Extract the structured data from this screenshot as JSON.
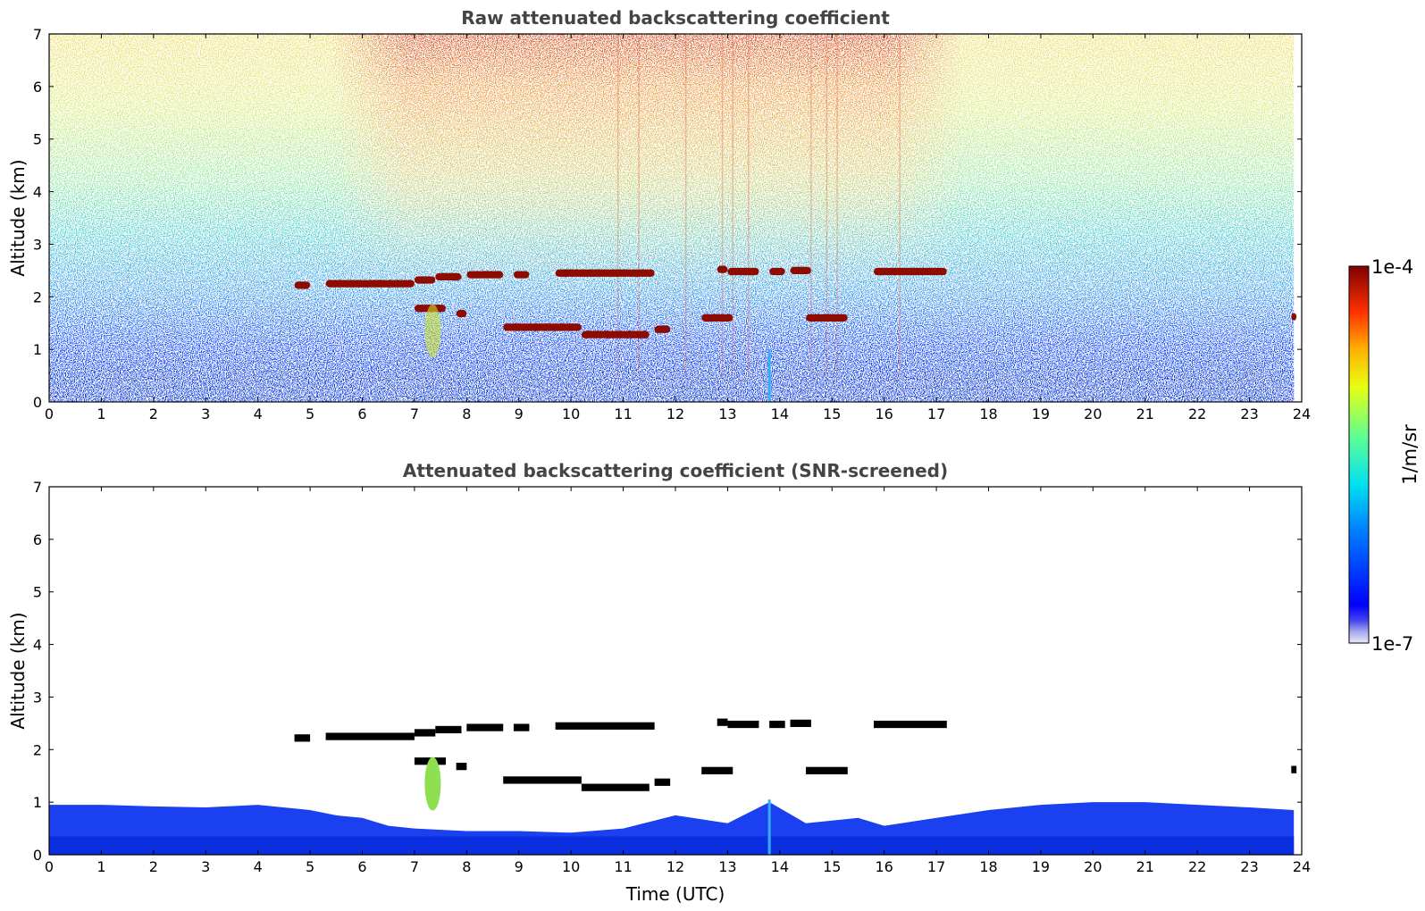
{
  "chart_data": [
    {
      "type": "heatmap",
      "title": "Raw attenuated backscattering coefficient",
      "xlabel": "",
      "ylabel": "Altitude (km)",
      "xlim": [
        0,
        24
      ],
      "ylim": [
        0,
        7
      ],
      "x_ticks": [
        0,
        1,
        2,
        3,
        4,
        5,
        6,
        7,
        8,
        9,
        10,
        11,
        12,
        13,
        14,
        15,
        16,
        17,
        18,
        19,
        20,
        21,
        22,
        23,
        24
      ],
      "y_ticks": [
        0,
        1,
        2,
        3,
        4,
        5,
        6,
        7
      ],
      "grid": false,
      "cloud_layers": [
        {
          "x": [
            4.7,
            5.0
          ],
          "y": 2.22
        },
        {
          "x": [
            5.3,
            7.0
          ],
          "y": 2.25
        },
        {
          "x": [
            7.0,
            7.4
          ],
          "y": 2.32
        },
        {
          "x": [
            7.4,
            7.9
          ],
          "y": 2.38
        },
        {
          "x": [
            8.0,
            8.7
          ],
          "y": 2.42
        },
        {
          "x": [
            8.9,
            9.2
          ],
          "y": 2.42
        },
        {
          "x": [
            9.7,
            11.6
          ],
          "y": 2.45
        },
        {
          "x": [
            12.8,
            13.0
          ],
          "y": 2.52
        },
        {
          "x": [
            13.0,
            13.6
          ],
          "y": 2.48
        },
        {
          "x": [
            13.8,
            14.1
          ],
          "y": 2.48
        },
        {
          "x": [
            14.2,
            14.6
          ],
          "y": 2.5
        },
        {
          "x": [
            15.8,
            17.2
          ],
          "y": 2.48
        },
        {
          "x": [
            7.0,
            7.6
          ],
          "y": 1.78
        },
        {
          "x": [
            7.8,
            8.0
          ],
          "y": 1.68
        },
        {
          "x": [
            8.7,
            10.2
          ],
          "y": 1.42
        },
        {
          "x": [
            10.2,
            11.5
          ],
          "y": 1.28
        },
        {
          "x": [
            11.6,
            11.9
          ],
          "y": 1.38
        },
        {
          "x": [
            12.5,
            13.1
          ],
          "y": 1.6
        },
        {
          "x": [
            14.5,
            15.3
          ],
          "y": 1.6
        },
        {
          "x": [
            23.8,
            23.9
          ],
          "y": 1.62
        }
      ]
    },
    {
      "type": "heatmap",
      "title": "Attenuated backscattering coefficient (SNR-screened)",
      "xlabel": "Time (UTC)",
      "ylabel": "Altitude (km)",
      "xlim": [
        0,
        24
      ],
      "ylim": [
        0,
        7
      ],
      "x_ticks": [
        0,
        1,
        2,
        3,
        4,
        5,
        6,
        7,
        8,
        9,
        10,
        11,
        12,
        13,
        14,
        15,
        16,
        17,
        18,
        19,
        20,
        21,
        22,
        23,
        24
      ],
      "y_ticks": [
        0,
        1,
        2,
        3,
        4,
        5,
        6,
        7
      ],
      "grid": false,
      "boundary_layer_top_km": [
        {
          "x": 0,
          "y": 0.95
        },
        {
          "x": 1,
          "y": 0.95
        },
        {
          "x": 2,
          "y": 0.92
        },
        {
          "x": 3,
          "y": 0.9
        },
        {
          "x": 4,
          "y": 0.95
        },
        {
          "x": 5,
          "y": 0.85
        },
        {
          "x": 5.5,
          "y": 0.75
        },
        {
          "x": 6,
          "y": 0.7
        },
        {
          "x": 6.5,
          "y": 0.55
        },
        {
          "x": 7,
          "y": 0.5
        },
        {
          "x": 8,
          "y": 0.45
        },
        {
          "x": 9,
          "y": 0.45
        },
        {
          "x": 10,
          "y": 0.42
        },
        {
          "x": 11,
          "y": 0.5
        },
        {
          "x": 12,
          "y": 0.75
        },
        {
          "x": 13,
          "y": 0.6
        },
        {
          "x": 13.8,
          "y": 1.0
        },
        {
          "x": 14.5,
          "y": 0.6
        },
        {
          "x": 15.5,
          "y": 0.7
        },
        {
          "x": 16,
          "y": 0.55
        },
        {
          "x": 17,
          "y": 0.7
        },
        {
          "x": 18,
          "y": 0.85
        },
        {
          "x": 19,
          "y": 0.95
        },
        {
          "x": 20,
          "y": 1.0
        },
        {
          "x": 21,
          "y": 1.0
        },
        {
          "x": 22,
          "y": 0.95
        },
        {
          "x": 23,
          "y": 0.9
        },
        {
          "x": 23.85,
          "y": 0.85
        }
      ]
    }
  ],
  "colorbar": {
    "label": "1/m/sr",
    "max_label": "1e-4",
    "min_label": "1e-7",
    "colormap": "jet"
  }
}
